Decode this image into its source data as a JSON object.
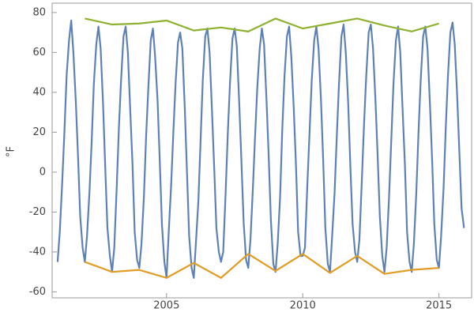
{
  "chart_data": {
    "type": "line",
    "ylabel": "°F",
    "xlim": [
      2000.8,
      2016.2
    ],
    "ylim": [
      -63,
      84.7
    ],
    "xticks": [
      2005,
      2010,
      2015
    ],
    "yticks": [
      -60,
      -40,
      -20,
      0,
      20,
      40,
      60,
      80
    ],
    "grid": false,
    "series": [
      {
        "color": "#5e81b5",
        "x": [
          2001.0,
          2001.08,
          2001.17,
          2001.25,
          2001.33,
          2001.42,
          2001.5,
          2001.58,
          2001.67,
          2001.75,
          2001.83,
          2001.92,
          2002.0,
          2002.08,
          2002.17,
          2002.25,
          2002.33,
          2002.42,
          2002.5,
          2002.58,
          2002.67,
          2002.75,
          2002.83,
          2002.92,
          2003.0,
          2003.08,
          2003.17,
          2003.25,
          2003.33,
          2003.42,
          2003.5,
          2003.58,
          2003.67,
          2003.75,
          2003.83,
          2003.92,
          2004.0,
          2004.08,
          2004.17,
          2004.25,
          2004.33,
          2004.42,
          2004.5,
          2004.58,
          2004.67,
          2004.75,
          2004.83,
          2004.92,
          2005.0,
          2005.08,
          2005.17,
          2005.25,
          2005.33,
          2005.42,
          2005.5,
          2005.58,
          2005.67,
          2005.75,
          2005.83,
          2005.92,
          2006.0,
          2006.08,
          2006.17,
          2006.25,
          2006.33,
          2006.42,
          2006.5,
          2006.58,
          2006.67,
          2006.75,
          2006.83,
          2006.92,
          2007.0,
          2007.08,
          2007.17,
          2007.25,
          2007.33,
          2007.42,
          2007.5,
          2007.58,
          2007.67,
          2007.75,
          2007.83,
          2007.92,
          2008.0,
          2008.08,
          2008.17,
          2008.25,
          2008.33,
          2008.42,
          2008.5,
          2008.58,
          2008.67,
          2008.75,
          2008.83,
          2008.92,
          2009.0,
          2009.08,
          2009.17,
          2009.25,
          2009.33,
          2009.42,
          2009.5,
          2009.58,
          2009.67,
          2009.75,
          2009.83,
          2009.92,
          2010.0,
          2010.08,
          2010.17,
          2010.25,
          2010.33,
          2010.42,
          2010.5,
          2010.58,
          2010.67,
          2010.75,
          2010.83,
          2010.92,
          2011.0,
          2011.08,
          2011.17,
          2011.25,
          2011.33,
          2011.42,
          2011.5,
          2011.58,
          2011.67,
          2011.75,
          2011.83,
          2011.92,
          2012.0,
          2012.08,
          2012.17,
          2012.25,
          2012.33,
          2012.42,
          2012.5,
          2012.58,
          2012.67,
          2012.75,
          2012.83,
          2012.92,
          2013.0,
          2013.08,
          2013.17,
          2013.25,
          2013.33,
          2013.42,
          2013.5,
          2013.58,
          2013.67,
          2013.75,
          2013.83,
          2013.92,
          2014.0,
          2014.08,
          2014.17,
          2014.25,
          2014.33,
          2014.42,
          2014.5,
          2014.58,
          2014.67,
          2014.75,
          2014.83,
          2014.92,
          2015.0,
          2015.08,
          2015.17,
          2015.25,
          2015.33,
          2015.42,
          2015.5,
          2015.58,
          2015.67,
          2015.75,
          2015.83,
          2015.92
        ],
        "values": [
          -45,
          -30,
          -5,
          20,
          48,
          66,
          76,
          60,
          35,
          8,
          -22,
          -38,
          -45,
          -32,
          -10,
          15,
          44,
          64,
          73,
          62,
          34,
          2,
          -28,
          -42,
          -50,
          -38,
          -8,
          22,
          46,
          68,
          73,
          60,
          30,
          4,
          -30,
          -44,
          -48,
          -36,
          -12,
          18,
          42,
          66,
          72,
          58,
          36,
          6,
          -26,
          -45,
          -53,
          -30,
          -6,
          20,
          44,
          65,
          70,
          62,
          32,
          0,
          -32,
          -48,
          -53,
          -35,
          -14,
          16,
          46,
          68,
          72,
          60,
          30,
          2,
          -28,
          -40,
          -45,
          -40,
          -10,
          20,
          45,
          67,
          72,
          63,
          34,
          5,
          -25,
          -44,
          -48,
          -34,
          -8,
          18,
          42,
          62,
          72,
          64,
          36,
          8,
          -24,
          -46,
          -50,
          -36,
          -12,
          22,
          48,
          68,
          73,
          58,
          32,
          4,
          -30,
          -42,
          -42,
          -38,
          -6,
          20,
          46,
          66,
          73,
          62,
          36,
          6,
          -28,
          -46,
          -50,
          -32,
          -10,
          18,
          44,
          68,
          74,
          60,
          34,
          2,
          -26,
          -40,
          -45,
          -34,
          -4,
          24,
          48,
          70,
          74,
          62,
          36,
          8,
          -22,
          -42,
          -50,
          -38,
          -12,
          16,
          44,
          66,
          73,
          60,
          30,
          4,
          -30,
          -45,
          -50,
          -36,
          -10,
          20,
          46,
          68,
          73,
          62,
          34,
          6,
          -26,
          -44,
          -48,
          -32,
          -8,
          22,
          48,
          70,
          75,
          64,
          38,
          10,
          -18,
          -28
        ]
      },
      {
        "color": "#8fb131",
        "x": [
          2002,
          2003,
          2004,
          2005,
          2006,
          2007,
          2008,
          2009,
          2010,
          2011,
          2012,
          2013,
          2014,
          2015
        ],
        "values": [
          77,
          74,
          74.5,
          76,
          71,
          72.5,
          70.5,
          77,
          72,
          74.5,
          77,
          73.5,
          70.5,
          74.5
        ]
      },
      {
        "color": "#e19c24",
        "x": [
          2002,
          2003,
          2004,
          2005,
          2006,
          2007,
          2008,
          2009,
          2010,
          2011,
          2012,
          2013,
          2014,
          2015
        ],
        "values": [
          -45,
          -50,
          -49,
          -53,
          -45.5,
          -53,
          -41,
          -49.5,
          -41,
          -50.5,
          -42,
          -51,
          -49,
          -48
        ]
      }
    ]
  }
}
